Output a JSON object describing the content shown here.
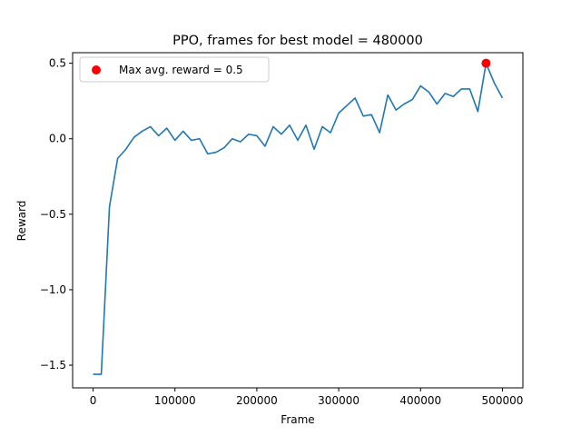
{
  "chart_data": {
    "type": "line",
    "title": "PPO, frames for best model = 480000",
    "xlabel": "Frame",
    "ylabel": "Reward",
    "xlim": [
      -25000,
      525000
    ],
    "ylim": [
      -1.65,
      0.57
    ],
    "grid": false,
    "legend_placement": "upper-left",
    "x_ticks": [
      {
        "value": 0,
        "label": "0"
      },
      {
        "value": 100000,
        "label": "100000"
      },
      {
        "value": 200000,
        "label": "200000"
      },
      {
        "value": 300000,
        "label": "300000"
      },
      {
        "value": 400000,
        "label": "400000"
      },
      {
        "value": 500000,
        "label": "500000"
      }
    ],
    "y_ticks": [
      {
        "value": 0.5,
        "label": "0.5"
      },
      {
        "value": 0.0,
        "label": "0.0"
      },
      {
        "value": -0.5,
        "label": "−0.5"
      },
      {
        "value": -1.0,
        "label": "−1.0"
      },
      {
        "value": -1.5,
        "label": "−1.5"
      }
    ],
    "series": [
      {
        "color": "#1f77b4",
        "x": [
          0,
          10000,
          20000,
          30000,
          40000,
          50000,
          60000,
          70000,
          80000,
          90000,
          100000,
          110000,
          120000,
          130000,
          140000,
          150000,
          160000,
          170000,
          180000,
          190000,
          200000,
          210000,
          220000,
          230000,
          240000,
          250000,
          260000,
          270000,
          280000,
          290000,
          300000,
          310000,
          320000,
          330000,
          340000,
          350000,
          360000,
          370000,
          380000,
          390000,
          400000,
          410000,
          420000,
          430000,
          440000,
          450000,
          460000,
          470000,
          480000,
          490000,
          500000
        ],
        "y": [
          -1.56,
          -1.56,
          -0.45,
          -0.13,
          -0.07,
          0.01,
          0.05,
          0.08,
          0.02,
          0.07,
          -0.01,
          0.05,
          -0.01,
          0.0,
          -0.1,
          -0.09,
          -0.06,
          0.0,
          -0.02,
          0.03,
          0.02,
          -0.05,
          0.08,
          0.03,
          0.09,
          -0.01,
          0.09,
          -0.07,
          0.08,
          0.04,
          0.17,
          0.22,
          0.27,
          0.15,
          0.16,
          0.04,
          0.29,
          0.19,
          0.23,
          0.26,
          0.35,
          0.31,
          0.23,
          0.3,
          0.28,
          0.33,
          0.33,
          0.18,
          0.5,
          0.37,
          0.27
        ]
      },
      {
        "name": "Max avg. reward = 0.5",
        "type": "scatter",
        "color": "#ff0000",
        "x": [
          480000
        ],
        "y": [
          0.5
        ]
      }
    ]
  }
}
